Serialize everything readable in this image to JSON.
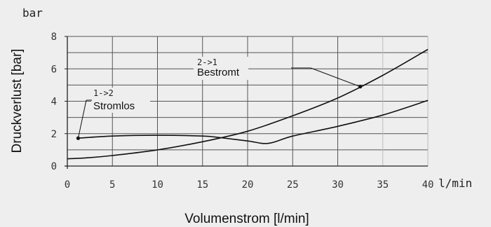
{
  "chart_data": {
    "type": "line",
    "title": "",
    "xlabel": "Volumenstrom [l/min]",
    "ylabel": "Druckverlust [bar]",
    "x_unit": "l/min",
    "y_unit": "bar",
    "xlim": [
      0,
      40
    ],
    "ylim": [
      0,
      8
    ],
    "x_ticks": [
      0,
      5,
      10,
      15,
      20,
      25,
      30,
      35,
      40
    ],
    "y_ticks": [
      0,
      2,
      4,
      6,
      8
    ],
    "grid": true,
    "series": [
      {
        "x": [
          0,
          2,
          5,
          10,
          15,
          20,
          25,
          30,
          35,
          40
        ],
        "y": [
          0.45,
          0.5,
          0.65,
          1.0,
          1.5,
          2.15,
          3.1,
          4.2,
          5.6,
          7.2
        ]
      },
      {
        "x": [
          1.2,
          5,
          10,
          15,
          17,
          20,
          22.3,
          25,
          30,
          35,
          40
        ],
        "y": [
          1.72,
          1.85,
          1.9,
          1.85,
          1.75,
          1.55,
          1.4,
          1.85,
          2.45,
          3.15,
          4.05
        ]
      }
    ],
    "annotations": [
      {
        "line1": "2->1",
        "line2": "Bestromt",
        "point": [
          32.5,
          4.9
        ]
      },
      {
        "line1": "1->2",
        "line2": "Stromlos",
        "point": [
          1.2,
          1.72
        ]
      }
    ]
  }
}
